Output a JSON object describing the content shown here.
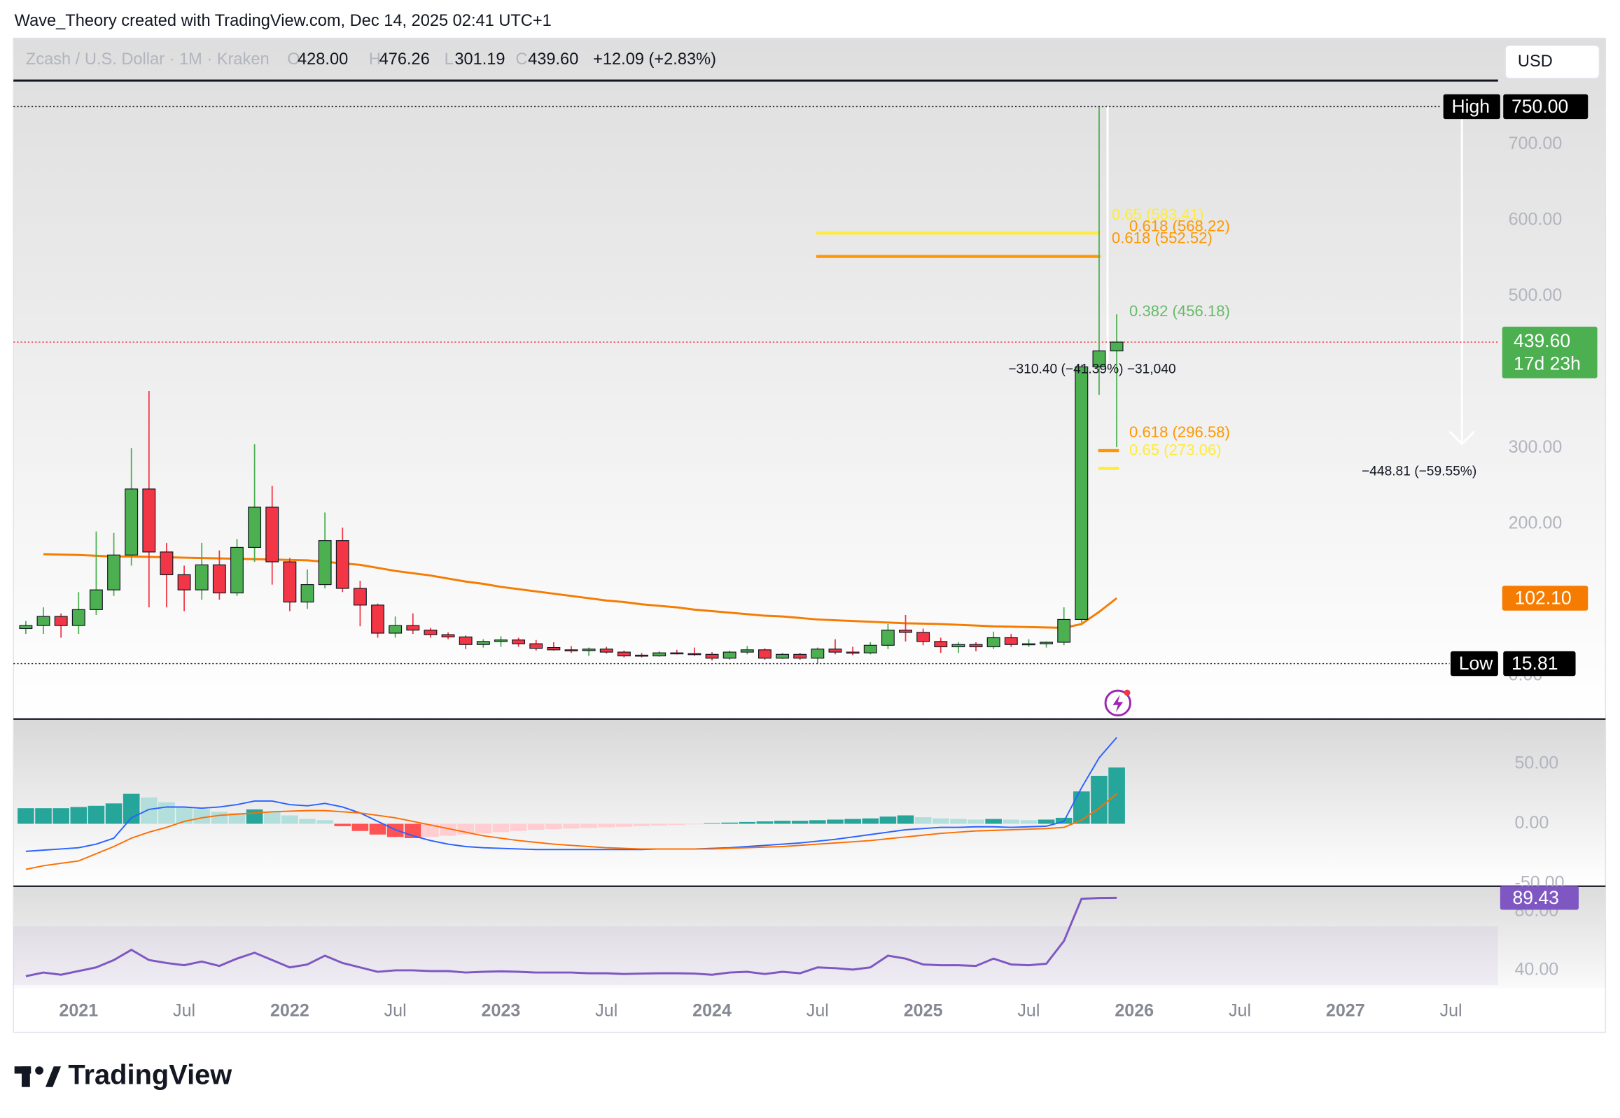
{
  "header": {
    "watermark": "Wave_Theory created with TradingView.com, Dec 14, 2025 02:41 UTC+1",
    "symbol": "Zcash / U.S. Dollar · 1M · Kraken",
    "currency": "USD",
    "logo": "TradingView"
  },
  "chart_data": {
    "type": "candlestick",
    "legend": [
      {
        "key": "O",
        "label": "428.00"
      },
      {
        "key": "H",
        "label": "476.26"
      },
      {
        "key": "L",
        "label": "301.19"
      },
      {
        "key": "C",
        "label": "439.60"
      }
    ],
    "change": "+12.09 (+2.83%)",
    "x": [
      "2020-10",
      "2020-11",
      "2020-12",
      "2021-01",
      "2021-02",
      "2021-03",
      "2021-04",
      "2021-05",
      "2021-06",
      "2021-07",
      "2021-08",
      "2021-09",
      "2021-10",
      "2021-11",
      "2021-12",
      "2022-01",
      "2022-02",
      "2022-03",
      "2022-04",
      "2022-05",
      "2022-06",
      "2022-07",
      "2022-08",
      "2022-09",
      "2022-10",
      "2022-11",
      "2022-12",
      "2023-01",
      "2023-02",
      "2023-03",
      "2023-04",
      "2023-05",
      "2023-06",
      "2023-07",
      "2023-08",
      "2023-09",
      "2023-10",
      "2023-11",
      "2023-12",
      "2024-01",
      "2024-02",
      "2024-03",
      "2024-04",
      "2024-05",
      "2024-06",
      "2024-07",
      "2024-08",
      "2024-09",
      "2024-10",
      "2024-11",
      "2024-12",
      "2025-01",
      "2025-02",
      "2025-03",
      "2025-04",
      "2025-05",
      "2025-06",
      "2025-07",
      "2025-08",
      "2025-09",
      "2025-10",
      "2025-11",
      "2025-12"
    ],
    "open": [
      62,
      66,
      78,
      66,
      87,
      113,
      159,
      246,
      163,
      133,
      113,
      146,
      109,
      169,
      222,
      150,
      97,
      120,
      178,
      115,
      93,
      56,
      66,
      60,
      54,
      51,
      41,
      45,
      47,
      42,
      37,
      34,
      33,
      35,
      31,
      27,
      26,
      30,
      29,
      28,
      23,
      31,
      34,
      23,
      28,
      23,
      35,
      31,
      30,
      40,
      60,
      57,
      45,
      38,
      41,
      38,
      50,
      41,
      42,
      44,
      74,
      407,
      428
    ],
    "high": [
      72,
      90,
      82,
      110,
      190,
      188,
      300,
      375,
      175,
      145,
      175,
      165,
      180,
      305,
      250,
      155,
      140,
      215,
      195,
      125,
      95,
      78,
      82,
      63,
      57,
      53,
      48,
      52,
      50,
      47,
      44,
      39,
      37,
      38,
      33,
      30,
      32,
      34,
      37,
      31,
      33,
      39,
      36,
      30,
      30,
      37,
      48,
      38,
      44,
      68,
      80,
      62,
      50,
      44,
      44,
      58,
      55,
      48,
      45,
      90,
      410,
      750,
      476.26
    ],
    "low": [
      55,
      55,
      50,
      55,
      80,
      105,
      145,
      90,
      90,
      85,
      100,
      100,
      105,
      150,
      120,
      85,
      88,
      115,
      110,
      65,
      50,
      50,
      55,
      50,
      48,
      35,
      37,
      38,
      38,
      33,
      33,
      30,
      26,
      29,
      24,
      24,
      25,
      28,
      26,
      20,
      21,
      28,
      21,
      22,
      21,
      15.81,
      28,
      27,
      28,
      35,
      45,
      40,
      30,
      30,
      32,
      35,
      38,
      38,
      37,
      40,
      70,
      370,
      301.19
    ],
    "close": [
      66,
      78,
      66,
      87,
      113,
      159,
      246,
      163,
      133,
      113,
      146,
      109,
      169,
      222,
      150,
      97,
      120,
      178,
      115,
      93,
      56,
      66,
      60,
      54,
      51,
      41,
      45,
      47,
      42,
      36,
      34,
      33,
      35,
      31,
      26,
      26,
      30,
      29,
      28,
      23,
      31,
      34,
      23,
      28,
      23,
      35,
      31,
      30,
      40,
      60,
      57,
      45,
      38,
      41,
      38,
      50,
      41,
      42,
      44,
      74,
      407,
      428,
      439.6
    ],
    "up_color": "#4caf50",
    "down_color": "#f23645",
    "ylim": [
      -56.5,
      784.4
    ],
    "yticks": [
      {
        "value": 0,
        "label": "0.00"
      },
      {
        "value": 200,
        "label": "200.00"
      },
      {
        "value": 300,
        "label": "300.00"
      },
      {
        "value": 500,
        "label": "500.00"
      },
      {
        "value": 600,
        "label": "600.00"
      },
      {
        "value": 700,
        "label": "700.00"
      }
    ],
    "xticks": [
      {
        "value": "2021-01",
        "label": "2021"
      },
      {
        "value": "2021-07",
        "label": "Jul"
      },
      {
        "value": "2022-01",
        "label": "2022"
      },
      {
        "value": "2022-07",
        "label": "Jul"
      },
      {
        "value": "2023-01",
        "label": "2023"
      },
      {
        "value": "2023-07",
        "label": "Jul"
      },
      {
        "value": "2024-01",
        "label": "2024"
      },
      {
        "value": "2024-07",
        "label": "Jul"
      },
      {
        "value": "2025-01",
        "label": "2025"
      },
      {
        "value": "2025-07",
        "label": "Jul"
      },
      {
        "value": "2026-01",
        "label": "2026"
      },
      {
        "value": "2026-07",
        "label": "Jul"
      },
      {
        "value": "2027-01",
        "label": "2027"
      },
      {
        "value": "2027-07",
        "label": "Jul"
      }
    ],
    "last_price_label": "439.60",
    "countdown": "17d 23h",
    "high_marker": {
      "text": "High",
      "label": "750.00"
    },
    "low_marker": {
      "text": "Low",
      "label": "15.81"
    },
    "ma": {
      "color": "#f57c00",
      "last_label": "102.10",
      "values": [
        null,
        160,
        159.5,
        159,
        158,
        157,
        157,
        156.5,
        156,
        155.5,
        155,
        154.5,
        154,
        153.5,
        153,
        152.5,
        152,
        150,
        148,
        146,
        142,
        138,
        135,
        132,
        128,
        124,
        121,
        117,
        114,
        111,
        108,
        105,
        102,
        99,
        97,
        94,
        92,
        90,
        87,
        85,
        83,
        81,
        79,
        78,
        76,
        74,
        73,
        72,
        71,
        70,
        69,
        68.5,
        68,
        67,
        66,
        65,
        64.5,
        64,
        63.5,
        63,
        68,
        84,
        102.1
      ]
    },
    "fib_levels": [
      {
        "value": 583.41,
        "label": "0.65 (583.41)",
        "color": "#ffeb3b"
      },
      {
        "value": 568.22,
        "label": "0.618 (568.22)",
        "color": "#ff9800"
      },
      {
        "value": 552.52,
        "label": "0.618 (552.52)",
        "color": "#ff9800"
      },
      {
        "value": 456.18,
        "label": "0.382 (456.18)",
        "color": "#66bb6a"
      },
      {
        "value": 296.58,
        "label": "0.618 (296.58)",
        "color": "#ff9800"
      },
      {
        "value": 273.06,
        "label": "0.65 (273.06)",
        "color": "#ffeb3b"
      }
    ],
    "measures": [
      {
        "label": "−310.40 (−41.39%) −31,040"
      },
      {
        "label": "−448.81 (−59.55%)"
      }
    ],
    "macd": {
      "histogram": [
        13,
        13,
        13,
        14,
        15,
        17,
        25,
        22,
        18,
        14,
        12,
        10,
        9,
        12,
        10,
        7,
        4,
        3,
        -2,
        -6,
        -9,
        -11,
        -12,
        -11,
        -10,
        -9,
        -8,
        -7,
        -6,
        -5,
        -4.5,
        -4,
        -3.5,
        -3,
        -2.5,
        -2,
        -1.5,
        -1,
        -0.5,
        0.5,
        1,
        1.5,
        2,
        2.5,
        2.5,
        3,
        3.5,
        4,
        4.5,
        6,
        7,
        5.5,
        4.5,
        4,
        3.5,
        4,
        3.5,
        3,
        3.5,
        5,
        27,
        40,
        47
      ],
      "macd": [
        -23,
        -22,
        -21,
        -20,
        -17,
        -12,
        5,
        12,
        14,
        14,
        13,
        14,
        16,
        19,
        19,
        16,
        15,
        17,
        14,
        9,
        2,
        -5,
        -10,
        -14,
        -17,
        -19,
        -20,
        -20.5,
        -21,
        -21.5,
        -21.5,
        -21.5,
        -21.5,
        -21.5,
        -21.5,
        -21.5,
        -21,
        -21,
        -21,
        -20.5,
        -20,
        -19,
        -18,
        -17,
        -16,
        -14.5,
        -13,
        -11,
        -9,
        -7,
        -5,
        -4,
        -3,
        -3,
        -2.5,
        -2.5,
        -3,
        -2.5,
        -2,
        2,
        30,
        55,
        72
      ],
      "signal": [
        -38,
        -35,
        -33,
        -31,
        -25,
        -19,
        -12,
        -7,
        -3,
        2,
        5,
        7,
        8,
        9,
        10,
        10.5,
        11,
        11,
        10,
        9,
        7,
        5,
        2,
        -1,
        -4,
        -7,
        -10,
        -12,
        -14,
        -15.5,
        -17,
        -18,
        -19,
        -20,
        -20.5,
        -21,
        -21,
        -21,
        -21,
        -21,
        -20.5,
        -20,
        -19.5,
        -19,
        -18,
        -17,
        -16,
        -15,
        -14,
        -12.5,
        -11,
        -9.5,
        -8,
        -7,
        -6,
        -5.5,
        -5,
        -4.5,
        -4,
        -3,
        3,
        13,
        25
      ],
      "macd_color": "#2962ff",
      "signal_color": "#ff6d00",
      "hist_colors": {
        "up_grow": "#26a69a",
        "up_fall": "#b2dfdb",
        "down_fall": "#ff5252",
        "down_grow": "#ffcdd2"
      },
      "ylim": [
        -51.7,
        87
      ],
      "yticks": [
        {
          "value": 50,
          "label": "50.00"
        },
        {
          "value": 0,
          "label": "0.00"
        },
        {
          "value": -50,
          "label": "-50.00"
        }
      ]
    },
    "rsi": {
      "color": "#7e57c2",
      "values": [
        36,
        38.5,
        37,
        39.5,
        42,
        47,
        54,
        47,
        45,
        43.5,
        46,
        43,
        48,
        52,
        47,
        42,
        44,
        50,
        45,
        42,
        39,
        40,
        40,
        39.5,
        39.5,
        38.5,
        39,
        39.3,
        39,
        38.5,
        38.5,
        38.5,
        38,
        38,
        37.5,
        37.8,
        38,
        38,
        37.8,
        37,
        38.5,
        39,
        37.5,
        39,
        38,
        42,
        41.5,
        40.5,
        42,
        50,
        48,
        44,
        43.5,
        43.5,
        43,
        48,
        44,
        43.5,
        44.5,
        60,
        88.8,
        89.3,
        89.43
      ],
      "last_label": "89.43",
      "band": [
        30,
        70
      ],
      "ylim": [
        28,
        97
      ],
      "yticks": [
        {
          "value": 80,
          "label": "80.00"
        },
        {
          "value": 40,
          "label": "40.00"
        }
      ]
    }
  }
}
